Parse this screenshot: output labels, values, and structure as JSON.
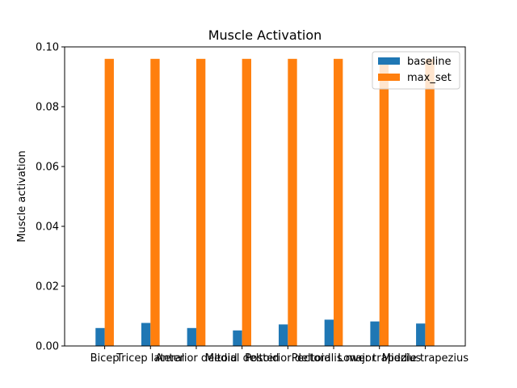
{
  "chart_data": {
    "type": "bar",
    "title": "Muscle Activation",
    "xlabel": "",
    "ylabel": "Muscle activation",
    "ylim": [
      0,
      0.1
    ],
    "yticks": [
      "0.00",
      "0.02",
      "0.04",
      "0.06",
      "0.08",
      "0.10"
    ],
    "categories": [
      "Bicep",
      "Tricep lateral",
      "Anterior deltoid",
      "Medial deltoid",
      "Posterior deltoid",
      "Pectoralis major",
      "Lower trapezius",
      "Middle trapezius"
    ],
    "series": [
      {
        "name": "baseline",
        "color": "#1f77b4",
        "values": [
          0.006,
          0.0077,
          0.006,
          0.0052,
          0.0072,
          0.0088,
          0.0082,
          0.0075
        ]
      },
      {
        "name": "max_set",
        "color": "#ff7f0e",
        "values": [
          0.096,
          0.096,
          0.096,
          0.096,
          0.096,
          0.096,
          0.096,
          0.096
        ]
      }
    ],
    "legend": "top-right",
    "grid": false
  }
}
